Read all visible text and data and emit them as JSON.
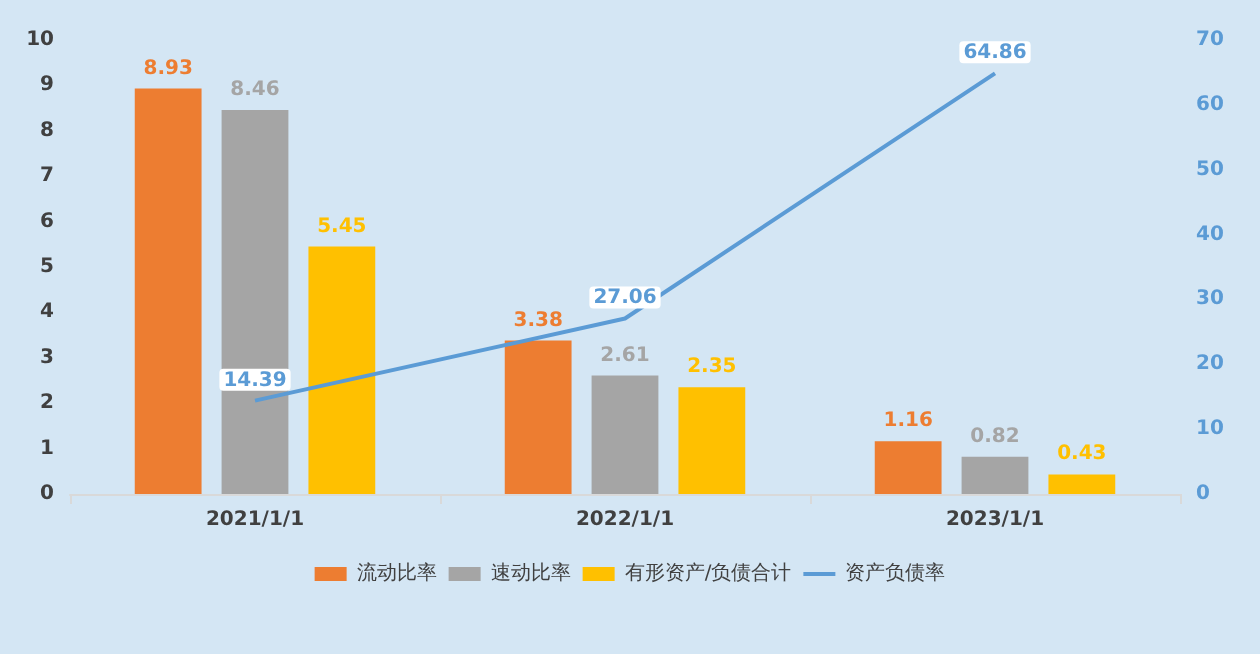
{
  "chart_data": {
    "type": "bar",
    "categories": [
      "2021/1/1",
      "2022/1/1",
      "2023/1/1"
    ],
    "series": [
      {
        "name": "流动比率",
        "color": "#ed7d31",
        "values": [
          8.93,
          3.38,
          1.16
        ]
      },
      {
        "name": "速动比率",
        "color": "#a5a5a5",
        "values": [
          8.46,
          2.61,
          0.82
        ]
      },
      {
        "name": "有形资产/负债合计",
        "color": "#ffc000",
        "values": [
          5.45,
          2.35,
          0.43
        ]
      },
      {
        "name": "资产负债率",
        "type": "line",
        "axis": "y2",
        "color": "#5b9bd5",
        "values": [
          14.39,
          27.06,
          64.86
        ]
      }
    ],
    "ylim": [
      0,
      10
    ],
    "yticks": [
      0,
      1,
      2,
      3,
      4,
      5,
      6,
      7,
      8,
      9,
      10
    ],
    "y2lim": [
      0,
      70
    ],
    "y2ticks": [
      0,
      10,
      20,
      30,
      40,
      50,
      60,
      70
    ],
    "data_labels": true,
    "grid": false,
    "legend": "bottom",
    "marker": "none"
  }
}
